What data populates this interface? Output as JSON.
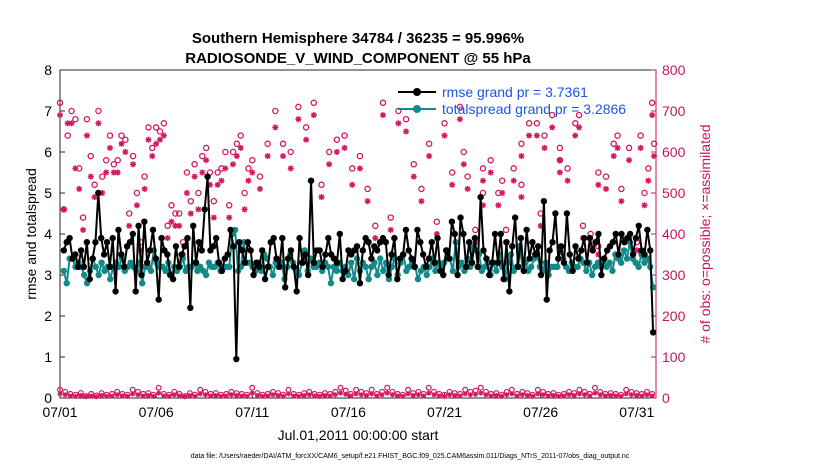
{
  "chart_data": {
    "type": "line",
    "title_line1": "Southern Hemisphere 34784 / 36235 = 95.996%",
    "title_line2": "RADIOSONDE_V_WIND_COMPONENT @ 55 hPa",
    "xlabel": "Jul.01,2011 00:00:00 start",
    "ylabel": "rmse and totalspread",
    "y2label": "# of obs: o=possible; ×=assimilated",
    "footer": "data file: /Users/raeder/DAI/ATM_forcXX/CAM6_setup/f.e21.FHIST_BGC.f09_025.CAM6assim.011/Diags_NTrS_2011-07/obs_diag_output.nc",
    "xlim": [
      1,
      32
    ],
    "ylim": [
      0,
      8
    ],
    "y2lim": [
      0,
      800
    ],
    "xticks": [
      1,
      6,
      11,
      16,
      21,
      26,
      31
    ],
    "xtick_labels": [
      "07/01",
      "07/06",
      "07/11",
      "07/16",
      "07/21",
      "07/26",
      "07/31"
    ],
    "yticks": [
      "0",
      "1",
      "2",
      "3",
      "4",
      "5",
      "6",
      "7",
      "8"
    ],
    "y2ticks": [
      "0",
      "100",
      "200",
      "300",
      "400",
      "500",
      "600",
      "700",
      "800"
    ],
    "colors": {
      "rmse": "#000000",
      "spread": "#138a8a",
      "obs": "#d6175d",
      "legend_text": "#1a56e8",
      "axis_right": "#c2185b"
    },
    "series": [
      {
        "name": "rmse grand pr = 3.7361",
        "key": "rmse",
        "values": [
          3.6,
          3.8,
          3.9,
          3.4,
          3.5,
          3.2,
          3.6,
          3.2,
          3.8,
          2.9,
          3.4,
          3.8,
          5.0,
          3.9,
          3.5,
          3.8,
          3.2,
          3.9,
          2.6,
          4.1,
          3.5,
          3.2,
          3.7,
          3.8,
          4.0,
          2.6,
          4.2,
          3.0,
          4.3,
          3.3,
          3.6,
          4.1,
          3.4,
          2.4,
          3.9,
          3.6,
          3.5,
          3.0,
          2.9,
          3.7,
          3.2,
          3.5,
          3.7,
          3.9,
          2.2,
          4.2,
          3.3,
          3.8,
          3.6,
          4.6,
          5.4,
          3.6,
          3.7,
          3.9,
          3.3,
          3.1,
          3.4,
          3.5,
          4.1,
          3.7,
          0.95,
          3.8,
          3.6,
          3.3,
          3.8,
          3.6,
          3.0,
          3.3,
          3.2,
          3.6,
          2.9,
          3.2,
          3.8,
          3.9,
          3.4,
          3.2,
          3.9,
          2.7,
          3.4,
          3.6,
          3.2,
          2.6,
          3.9,
          3.3,
          3.5,
          3.0,
          5.3,
          3.3,
          3.6,
          3.6,
          3.2,
          3.5,
          3.9,
          3.5,
          3.4,
          3.3,
          4.0,
          2.9,
          3.1,
          3.6,
          3.5,
          3.6,
          3.7,
          2.8,
          3.6,
          3.9,
          3.8,
          3.4,
          3.7,
          3.6,
          3.8,
          3.9,
          3.8,
          3.0,
          3.5,
          3.9,
          2.9,
          3.4,
          3.5,
          4.1,
          3.6,
          3.4,
          3.2,
          4.1,
          3.8,
          3.5,
          3.2,
          3.4,
          3.8,
          3.3,
          3.9,
          3.1,
          3.0,
          3.6,
          3.4,
          4.3,
          4.0,
          3.0,
          4.4,
          4.0,
          3.2,
          3.8,
          3.3,
          3.9,
          3.2,
          4.9,
          3.6,
          3.4,
          3.0,
          3.3,
          4.0,
          3.3,
          4.0,
          2.9,
          3.8,
          2.6,
          3.7,
          4.4,
          3.2,
          3.9,
          3.1,
          4.1,
          3.4,
          3.8,
          3.5,
          3.7,
          3.0,
          4.8,
          2.4,
          3.6,
          3.8,
          4.5,
          3.4,
          3.7,
          3.3,
          4.5,
          3.5,
          3.1,
          3.7,
          3.4,
          3.6,
          3.9,
          3.3,
          3.9,
          3.6,
          3.8,
          4.0,
          3.0,
          3.4,
          3.6,
          3.7,
          3.8,
          4.0,
          3.5,
          4.0,
          3.8,
          3.9,
          4.0,
          3.5,
          3.9,
          4.2,
          3.6,
          3.5,
          4.1,
          3.6,
          1.6
        ]
      },
      {
        "name": "totalspread grand pr = 3.2866",
        "key": "spread",
        "values": [
          3.1,
          2.8,
          3.4,
          3.4,
          3.2,
          3.3,
          3.2,
          3.0,
          2.8,
          3.1,
          3.4,
          3.2,
          3.0,
          3.3,
          3.1,
          3.2,
          2.9,
          3.2,
          3.3,
          3.2,
          3.4,
          3.1,
          3.2,
          3.3,
          3.2,
          3.1,
          3.3,
          2.8,
          3.2,
          3.2,
          3.1,
          3.6,
          3.3,
          3.2,
          3.2,
          3.1,
          3.3,
          3.0,
          3.2,
          3.1,
          3.2,
          3.4,
          3.1,
          3.2,
          3.2,
          3.3,
          3.1,
          3.2,
          3.1,
          3.0,
          3.3,
          3.2,
          3.2,
          3.3,
          3.1,
          3.2,
          3.2,
          3.2,
          4.0,
          4.1,
          3.1,
          3.2,
          3.8,
          3.3,
          3.3,
          3.2,
          3.1,
          3.3,
          3.1,
          3.5,
          3.4,
          3.2,
          3.0,
          3.3,
          3.2,
          3.3,
          2.9,
          3.2,
          3.5,
          3.3,
          3.1,
          3.0,
          3.3,
          3.6,
          3.1,
          3.4,
          3.2,
          3.2,
          3.3,
          3.1,
          3.3,
          3.2,
          2.8,
          3.2,
          3.1,
          3.3,
          3.1,
          3.2,
          3.0,
          3.3,
          2.9,
          3.4,
          3.1,
          3.3,
          3.2,
          2.9,
          3.2,
          3.3,
          3.0,
          3.4,
          3.1,
          3.3,
          2.9,
          3.2,
          3.4,
          3.0,
          3.3,
          3.5,
          3.1,
          3.2,
          3.3,
          3.2,
          2.9,
          3.1,
          3.2,
          3.0,
          3.2,
          3.4,
          3.1,
          3.3,
          3.2,
          3.3,
          3.6,
          3.4,
          3.1,
          3.8,
          3.2,
          3.3,
          3.1,
          3.4,
          3.2,
          3.7,
          3.6,
          3.5,
          3.1,
          3.2,
          3.3,
          3.0,
          3.3,
          3.1,
          3.5,
          3.2,
          2.9,
          3.3,
          3.5,
          3.1,
          3.2,
          3.7,
          3.2,
          3.3,
          3.1,
          3.2,
          3.4,
          3.5,
          3.2,
          3.1,
          3.3,
          3.0,
          3.2,
          3.2,
          3.2,
          3.6,
          3.4,
          3.2,
          3.1,
          3.3,
          3.2,
          3.2,
          3.4,
          3.3,
          3.1,
          3.3,
          3.0,
          3.2,
          3.3,
          3.2,
          3.4,
          3.2,
          3.3,
          3.1,
          3.5,
          3.4,
          3.3,
          3.6,
          3.4,
          3.8,
          3.4,
          3.3,
          3.2,
          3.5,
          3.3,
          3.4,
          3.2,
          2.7
        ]
      }
    ],
    "obs_possible_values": [
      720,
      460,
      640,
      700,
      680,
      560,
      440,
      680,
      590,
      520,
      700,
      540,
      580,
      640,
      570,
      580,
      640,
      630,
      450,
      590,
      500,
      380,
      540,
      660,
      610,
      660,
      650,
      670,
      420,
      470,
      450,
      450,
      380,
      550,
      480,
      570,
      500,
      590,
      610,
      550,
      480,
      550,
      560,
      600,
      470,
      600,
      620,
      640,
      500,
      560,
      580,
      540,
      620,
      700,
      620,
      600,
      710,
      660,
      720,
      520,
      600,
      630,
      640,
      560,
      590,
      510,
      420,
      720,
      440,
      700,
      680,
      570,
      510,
      620,
      430,
      670,
      550,
      710,
      540,
      410,
      560,
      580,
      500,
      410,
      560,
      620,
      670,
      670,
      640,
      690,
      580,
      560,
      670,
      420,
      400,
      550,
      540,
      620,
      510,
      610,
      380,
      640,
      500,
      560,
      720,
      620,
      640,
      370,
      690,
      610,
      450,
      520,
      530,
      500,
      600
    ],
    "obs_possible_x": [
      1.0,
      1.2,
      1.4,
      1.6,
      1.8,
      2.0,
      2.2,
      2.4,
      2.6,
      2.8,
      3.0,
      3.2,
      3.4,
      3.6,
      3.8,
      4.0,
      4.2,
      4.4,
      4.6,
      4.8,
      5.0,
      5.2,
      5.4,
      5.6,
      5.8,
      6.0,
      6.2,
      6.4,
      6.6,
      6.8,
      7.0,
      7.2,
      7.4,
      7.6,
      7.8,
      8.0,
      8.2,
      8.4,
      8.6,
      8.8,
      9.0,
      9.2,
      9.4,
      9.6,
      9.8,
      10.0,
      10.2,
      10.4,
      10.6,
      10.8,
      11.0,
      11.4,
      11.8,
      12.2,
      12.6,
      13.0,
      13.4,
      13.8,
      14.2,
      14.6,
      15.0,
      15.4,
      15.8,
      16.2,
      16.6,
      17.0,
      17.4,
      17.8,
      18.2,
      18.6,
      19.0,
      19.4,
      19.8,
      20.2,
      20.6,
      21.0,
      21.4,
      21.8,
      22.2,
      22.6,
      23.0,
      23.4,
      23.8,
      24.2,
      24.6,
      25.0,
      25.4,
      25.8,
      26.2,
      26.6,
      27.0,
      27.4,
      27.8,
      28.2,
      28.6,
      29.0,
      29.4,
      29.8,
      30.2,
      30.6,
      31.0,
      31.2,
      31.4,
      31.6,
      31.8,
      31.9,
      30.0,
      29.0,
      28.0,
      27.0,
      26.0,
      25.0,
      24.0,
      23.0,
      22.0
    ],
    "obs_assim_values": [
      690,
      460,
      670,
      670,
      560,
      510,
      410,
      640,
      540,
      490,
      670,
      500,
      550,
      610,
      550,
      550,
      620,
      600,
      420,
      570,
      470,
      360,
      510,
      630,
      590,
      620,
      630,
      640,
      390,
      430,
      420,
      420,
      350,
      500,
      450,
      540,
      460,
      550,
      580,
      520,
      440,
      520,
      530,
      560,
      440,
      570,
      590,
      610,
      460,
      530,
      550,
      510,
      590,
      660,
      590,
      560,
      680,
      630,
      690,
      490,
      570,
      600,
      610,
      520,
      560,
      480,
      390,
      690,
      410,
      670,
      650,
      540,
      480,
      590,
      400,
      640,
      520,
      680,
      510,
      380,
      530,
      550,
      470,
      380,
      530,
      590,
      640,
      640,
      610,
      660,
      550,
      530,
      640,
      390,
      370,
      520,
      510,
      590,
      480,
      580,
      360,
      610,
      470,
      530,
      690,
      590,
      610,
      350,
      660,
      580,
      420,
      490,
      500,
      470,
      570
    ],
    "obs_bottom_possible": [
      20,
      15,
      10,
      8,
      12,
      5,
      10,
      6,
      12,
      8,
      10,
      15,
      10,
      8,
      20,
      15,
      10,
      12,
      8,
      25,
      10,
      8,
      15,
      10,
      5,
      12,
      8,
      20,
      15,
      10,
      12,
      8,
      10,
      15,
      12,
      10,
      8,
      25,
      12,
      8,
      10,
      15,
      12,
      8,
      20,
      10,
      8,
      12,
      15,
      10,
      8,
      12,
      10,
      15,
      25,
      18,
      10,
      20,
      15,
      12,
      20,
      10,
      15,
      25,
      15,
      10,
      8,
      20,
      12,
      15,
      10,
      25,
      15,
      10,
      8,
      15,
      12,
      10,
      20,
      15,
      18,
      25,
      15,
      10,
      12,
      8,
      15,
      20,
      10,
      15,
      12,
      8,
      20,
      15,
      10,
      12,
      8,
      10,
      15,
      12,
      20,
      15,
      10,
      25,
      15,
      10,
      12,
      10,
      8,
      20,
      15,
      12,
      10,
      15,
      10
    ],
    "obs_bottom_assim": [
      10,
      8,
      5,
      4,
      6,
      3,
      5,
      3,
      6,
      4,
      5,
      8,
      5,
      4,
      10,
      8,
      5,
      6,
      4,
      12,
      5,
      4,
      8,
      5,
      3,
      6,
      4,
      10,
      8,
      5,
      6,
      4,
      5,
      8,
      6,
      5,
      4,
      12,
      6,
      4,
      5,
      8,
      6,
      4,
      10,
      5,
      4,
      6,
      8,
      5,
      4,
      6,
      5,
      8,
      12,
      9,
      5,
      10,
      8,
      6,
      10,
      5,
      8,
      12,
      8,
      5,
      4,
      10,
      6,
      8,
      5,
      12,
      8,
      5,
      4,
      8,
      6,
      5,
      10,
      8,
      9,
      12,
      8,
      5,
      6,
      4,
      8,
      10,
      5,
      8,
      6,
      4,
      10,
      8,
      5,
      6,
      4,
      5,
      8,
      6,
      10,
      8,
      5,
      12,
      8,
      5,
      6,
      5,
      4,
      10,
      8,
      6,
      5,
      8,
      5
    ]
  }
}
